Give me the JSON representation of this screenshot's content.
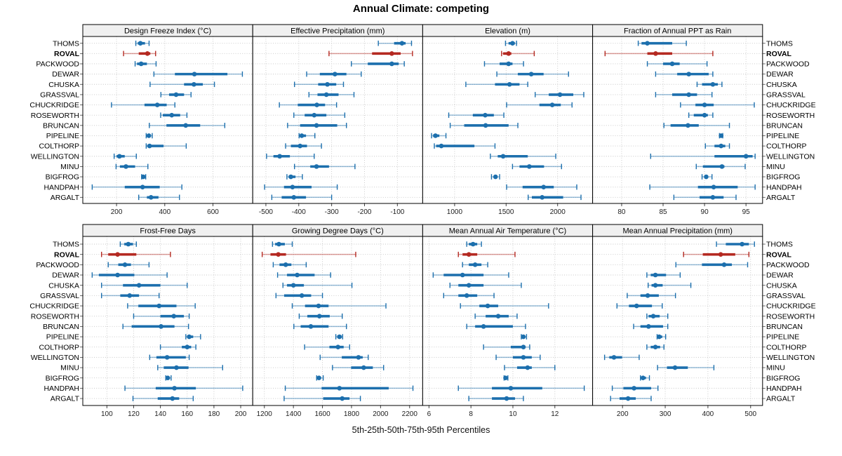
{
  "title": "Annual Climate: competing",
  "caption": "5th-25th-50th-75th-95th Percentiles",
  "colors": {
    "series": "#1c6fad",
    "highlight": "#b42921",
    "grid": "#c6c6c6",
    "strip_bg": "#f0f0f0",
    "border": "#000000",
    "tick": "#444444",
    "tick_label": "#222222",
    "row_label": "#000000"
  },
  "sites": [
    "THOMS",
    "ROVAL",
    "PACKWOOD",
    "DEWAR",
    "CHUSKA",
    "GRASSVAL",
    "CHUCKRIDGE",
    "ROSEWORTH",
    "BRUNCAN",
    "PIPELINE",
    "COLTHORP",
    "WELLINGTON",
    "MINU",
    "BIGFROG",
    "HANDPAH",
    "ARGALT"
  ],
  "highlight_site": "ROVAL",
  "chart_data": {
    "type": "trellis-percentile-dotplot",
    "grid": "dotted",
    "legend": "none",
    "percentile_labels": [
      "5th",
      "25th",
      "50th",
      "75th",
      "95th"
    ],
    "rows": [
      "THOMS",
      "ROVAL",
      "PACKWOOD",
      "DEWAR",
      "CHUSKA",
      "GRASSVAL",
      "CHUCKRIDGE",
      "ROSEWORTH",
      "BRUNCAN",
      "PIPELINE",
      "COLTHORP",
      "WELLINGTON",
      "MINU",
      "BIGFROG",
      "HANDPAH",
      "ARGALT"
    ],
    "panels": [
      {
        "title": "Design Freeze Index (°C)",
        "grid_row": 0,
        "grid_col": 0,
        "axis_range": [
          60,
          765
        ],
        "ticks": [
          200,
          400,
          600
        ],
        "values": [
          [
            280,
            288,
            299,
            318,
            335
          ],
          [
            229,
            292,
            328,
            340,
            362
          ],
          [
            277,
            285,
            302,
            326,
            364
          ],
          [
            355,
            442,
            523,
            660,
            722
          ],
          [
            339,
            480,
            521,
            558,
            606
          ],
          [
            384,
            418,
            447,
            480,
            509
          ],
          [
            179,
            316,
            369,
            408,
            442
          ],
          [
            383,
            392,
            429,
            464,
            492
          ],
          [
            336,
            407,
            487,
            547,
            649
          ],
          [
            323,
            328,
            334,
            340,
            348
          ],
          [
            323,
            327,
            337,
            395,
            489
          ],
          [
            190,
            200,
            212,
            234,
            282
          ],
          [
            198,
            214,
            239,
            277,
            330
          ],
          [
            304,
            307,
            311,
            315,
            321
          ],
          [
            99,
            234,
            308,
            379,
            471
          ],
          [
            292,
            326,
            343,
            374,
            461
          ]
        ]
      },
      {
        "title": "Effective Precipitation (mm)",
        "grid_row": 0,
        "grid_col": 1,
        "axis_range": [
          -540,
          -23
        ],
        "ticks": [
          -500,
          -400,
          -300,
          -200,
          -100
        ],
        "values": [
          [
            -158,
            -110,
            -86,
            -75,
            -57
          ],
          [
            -308,
            -177,
            -117,
            -90,
            -54
          ],
          [
            -240,
            -190,
            -117,
            -96,
            -79
          ],
          [
            -376,
            -336,
            -290,
            -255,
            -210
          ],
          [
            -413,
            -341,
            -313,
            -286,
            -264
          ],
          [
            -369,
            -343,
            -316,
            -279,
            -232
          ],
          [
            -459,
            -403,
            -345,
            -320,
            -285
          ],
          [
            -415,
            -382,
            -353,
            -316,
            -260
          ],
          [
            -434,
            -396,
            -346,
            -283,
            -255
          ],
          [
            -399,
            -396,
            -391,
            -378,
            -351
          ],
          [
            -440,
            -424,
            -396,
            -375,
            -331
          ],
          [
            -498,
            -477,
            -458,
            -427,
            -353
          ],
          [
            -413,
            -365,
            -346,
            -308,
            -229
          ],
          [
            -436,
            -431,
            -424,
            -410,
            -389
          ],
          [
            -504,
            -445,
            -419,
            -361,
            -283
          ],
          [
            -482,
            -452,
            -415,
            -378,
            -300
          ]
        ]
      },
      {
        "title": "Elevation (m)",
        "grid_row": 0,
        "grid_col": 2,
        "axis_range": [
          690,
          2340
        ],
        "ticks": [
          1000,
          1500,
          2000
        ],
        "values": [
          [
            1494,
            1524,
            1562,
            1585,
            1601
          ],
          [
            1456,
            1471,
            1524,
            1551,
            1773
          ],
          [
            1290,
            1437,
            1524,
            1562,
            1669
          ],
          [
            1410,
            1614,
            1744,
            1864,
            2106
          ],
          [
            1109,
            1392,
            1533,
            1630,
            1710
          ],
          [
            1782,
            1914,
            2023,
            2152,
            2254
          ],
          [
            1505,
            1823,
            1948,
            2031,
            2140
          ],
          [
            943,
            1177,
            1297,
            1381,
            1478
          ],
          [
            957,
            1093,
            1301,
            1524,
            1614
          ],
          [
            776,
            791,
            814,
            852,
            916
          ],
          [
            803,
            820,
            871,
            1192,
            1392
          ],
          [
            1347,
            1419,
            1471,
            1710,
            1982
          ],
          [
            1562,
            1630,
            1725,
            1868,
            2038
          ],
          [
            1358,
            1380,
            1397,
            1415,
            1437
          ],
          [
            1505,
            1660,
            1864,
            1963,
            2186
          ],
          [
            1714,
            1750,
            1850,
            2054,
            2227
          ]
        ]
      },
      {
        "title": "Fraction of Annual PPT as Rain",
        "grid_row": 0,
        "grid_col": 3,
        "axis_range": [
          76.5,
          97
        ],
        "ticks": [
          80,
          85,
          90,
          95
        ],
        "values": [
          [
            82,
            82.4,
            83.1,
            86.1,
            87.8
          ],
          [
            78,
            83.1,
            84.1,
            86.1,
            91
          ],
          [
            83.1,
            85,
            86.1,
            87,
            90.3
          ],
          [
            84.1,
            86.7,
            88.1,
            90.5,
            91
          ],
          [
            89.1,
            89.7,
            91,
            91.6,
            92.1
          ],
          [
            84.1,
            86.1,
            88.1,
            89.1,
            90.9
          ],
          [
            87.1,
            88.9,
            90,
            91.1,
            96
          ],
          [
            88.1,
            88.7,
            90,
            90.4,
            91
          ],
          [
            85.1,
            85.9,
            88,
            89.3,
            93
          ],
          [
            91.8,
            91.9,
            92,
            92.1,
            92.2
          ],
          [
            90.1,
            91.2,
            92,
            92.5,
            93
          ],
          [
            83.5,
            91.2,
            95,
            95.8,
            96.1
          ],
          [
            89,
            89.8,
            92.1,
            92.4,
            94.9
          ],
          [
            89.7,
            90,
            90.2,
            90.4,
            90.9
          ],
          [
            83.4,
            89.2,
            91.1,
            94,
            96.1
          ],
          [
            86.3,
            89.4,
            91,
            92.3,
            93.8
          ]
        ]
      },
      {
        "title": "Frost-Free Days",
        "grid_row": 1,
        "grid_col": 0,
        "axis_range": [
          82,
          209
        ],
        "ticks": [
          100,
          120,
          140,
          160,
          180,
          200
        ],
        "values": [
          [
            110,
            113,
            116,
            119.5,
            122
          ],
          [
            96,
            101,
            108,
            122,
            147.5
          ],
          [
            101,
            108.5,
            113.5,
            118,
            131.5
          ],
          [
            89,
            94,
            108,
            120.5,
            145
          ],
          [
            96,
            112,
            124,
            140,
            160
          ],
          [
            96,
            110,
            117,
            124,
            139
          ],
          [
            115.5,
            123.5,
            139,
            152,
            166
          ],
          [
            120,
            140,
            150,
            157.5,
            161.5
          ],
          [
            112,
            118.5,
            140.5,
            150.5,
            161
          ],
          [
            159,
            160,
            161.5,
            164.5,
            170
          ],
          [
            140,
            156,
            160,
            163,
            166.5
          ],
          [
            132,
            137,
            145,
            159,
            161.5
          ],
          [
            138,
            142.5,
            152,
            161,
            186.5
          ],
          [
            144,
            145,
            145.5,
            146.5,
            148
          ],
          [
            113.5,
            136.5,
            150.5,
            166.5,
            201.5
          ],
          [
            119.5,
            138,
            149,
            154,
            164.5
          ]
        ]
      },
      {
        "title": "Growing Degree Days (°C)",
        "grid_row": 1,
        "grid_col": 1,
        "axis_range": [
          1120,
          2290
        ],
        "ticks": [
          1200,
          1400,
          1600,
          1800,
          2000,
          2200
        ],
        "values": [
          [
            1256,
            1274,
            1300,
            1341,
            1392
          ],
          [
            1185,
            1242,
            1296,
            1349,
            1829
          ],
          [
            1261,
            1304,
            1347,
            1386,
            1488
          ],
          [
            1291,
            1356,
            1426,
            1546,
            1656
          ],
          [
            1328,
            1356,
            1400,
            1472,
            1803
          ],
          [
            1280,
            1336,
            1458,
            1522,
            1600
          ],
          [
            1392,
            1480,
            1573,
            1642,
            2037
          ],
          [
            1440,
            1496,
            1579,
            1650,
            1736
          ],
          [
            1403,
            1450,
            1520,
            1642,
            1765
          ],
          [
            1692,
            1701,
            1717,
            1733,
            1739
          ],
          [
            1477,
            1648,
            1707,
            1746,
            1787
          ],
          [
            1584,
            1733,
            1848,
            1877,
            1915
          ],
          [
            1669,
            1797,
            1884,
            1947,
            2021
          ],
          [
            1560,
            1570,
            1576,
            1590,
            1605
          ],
          [
            1344,
            1594,
            1717,
            2056,
            2223
          ],
          [
            1336,
            1605,
            1736,
            1786,
            1861
          ]
        ]
      },
      {
        "title": "Mean Annual Air Temperature (°C)",
        "grid_row": 1,
        "grid_col": 2,
        "axis_range": [
          5.7,
          13.8
        ],
        "ticks": [
          6,
          8,
          10,
          12
        ],
        "values": [
          [
            7.8,
            7.9,
            8.1,
            8.3,
            8.5
          ],
          [
            7.4,
            7.6,
            7.9,
            8.3,
            10.1
          ],
          [
            7.6,
            7.9,
            8.2,
            8.5,
            8.8
          ],
          [
            6.2,
            6.7,
            7.6,
            8.6,
            9.8
          ],
          [
            7,
            7.4,
            7.9,
            8.6,
            10.4
          ],
          [
            6.7,
            7.4,
            7.8,
            8.3,
            9.1
          ],
          [
            7.5,
            8.4,
            8.8,
            9.3,
            11.7
          ],
          [
            8.2,
            8.7,
            9.3,
            9.8,
            10.2
          ],
          [
            7.8,
            8.2,
            8.6,
            10,
            10.6
          ],
          [
            10.4,
            10.45,
            10.5,
            10.55,
            10.65
          ],
          [
            8.6,
            9.9,
            10.5,
            10.6,
            10.8
          ],
          [
            9.2,
            10,
            10.5,
            10.9,
            11.3
          ],
          [
            9.6,
            10.2,
            10.7,
            10.9,
            12
          ],
          [
            9.58,
            9.62,
            9.65,
            9.7,
            9.76
          ],
          [
            7.4,
            9,
            9.9,
            11.4,
            13.4
          ],
          [
            7.9,
            9,
            9.7,
            10.1,
            10.5
          ]
        ]
      },
      {
        "title": "Mean Annual Precipitation (mm)",
        "grid_row": 1,
        "grid_col": 3,
        "axis_range": [
          130,
          528
        ],
        "ticks": [
          200,
          300,
          400,
          500
        ],
        "values": [
          [
            420,
            442,
            480,
            496,
            509
          ],
          [
            343,
            388,
            430,
            464,
            496
          ],
          [
            325,
            386,
            438,
            456,
            493
          ],
          [
            257,
            266,
            277,
            302,
            335
          ],
          [
            260,
            268,
            277,
            294,
            360
          ],
          [
            211,
            242,
            259,
            285,
            324
          ],
          [
            187,
            215,
            233,
            269,
            293
          ],
          [
            257,
            261,
            272,
            287,
            306
          ],
          [
            226,
            242,
            261,
            295,
            306
          ],
          [
            281,
            282,
            286,
            293,
            301
          ],
          [
            257,
            266,
            277,
            288,
            297
          ],
          [
            158,
            169,
            180,
            199,
            239
          ],
          [
            282,
            304,
            323,
            353,
            414
          ],
          [
            242,
            244,
            248,
            255,
            263
          ],
          [
            176,
            202,
            227,
            267,
            283
          ],
          [
            172,
            193,
            213,
            231,
            267
          ]
        ]
      }
    ]
  }
}
